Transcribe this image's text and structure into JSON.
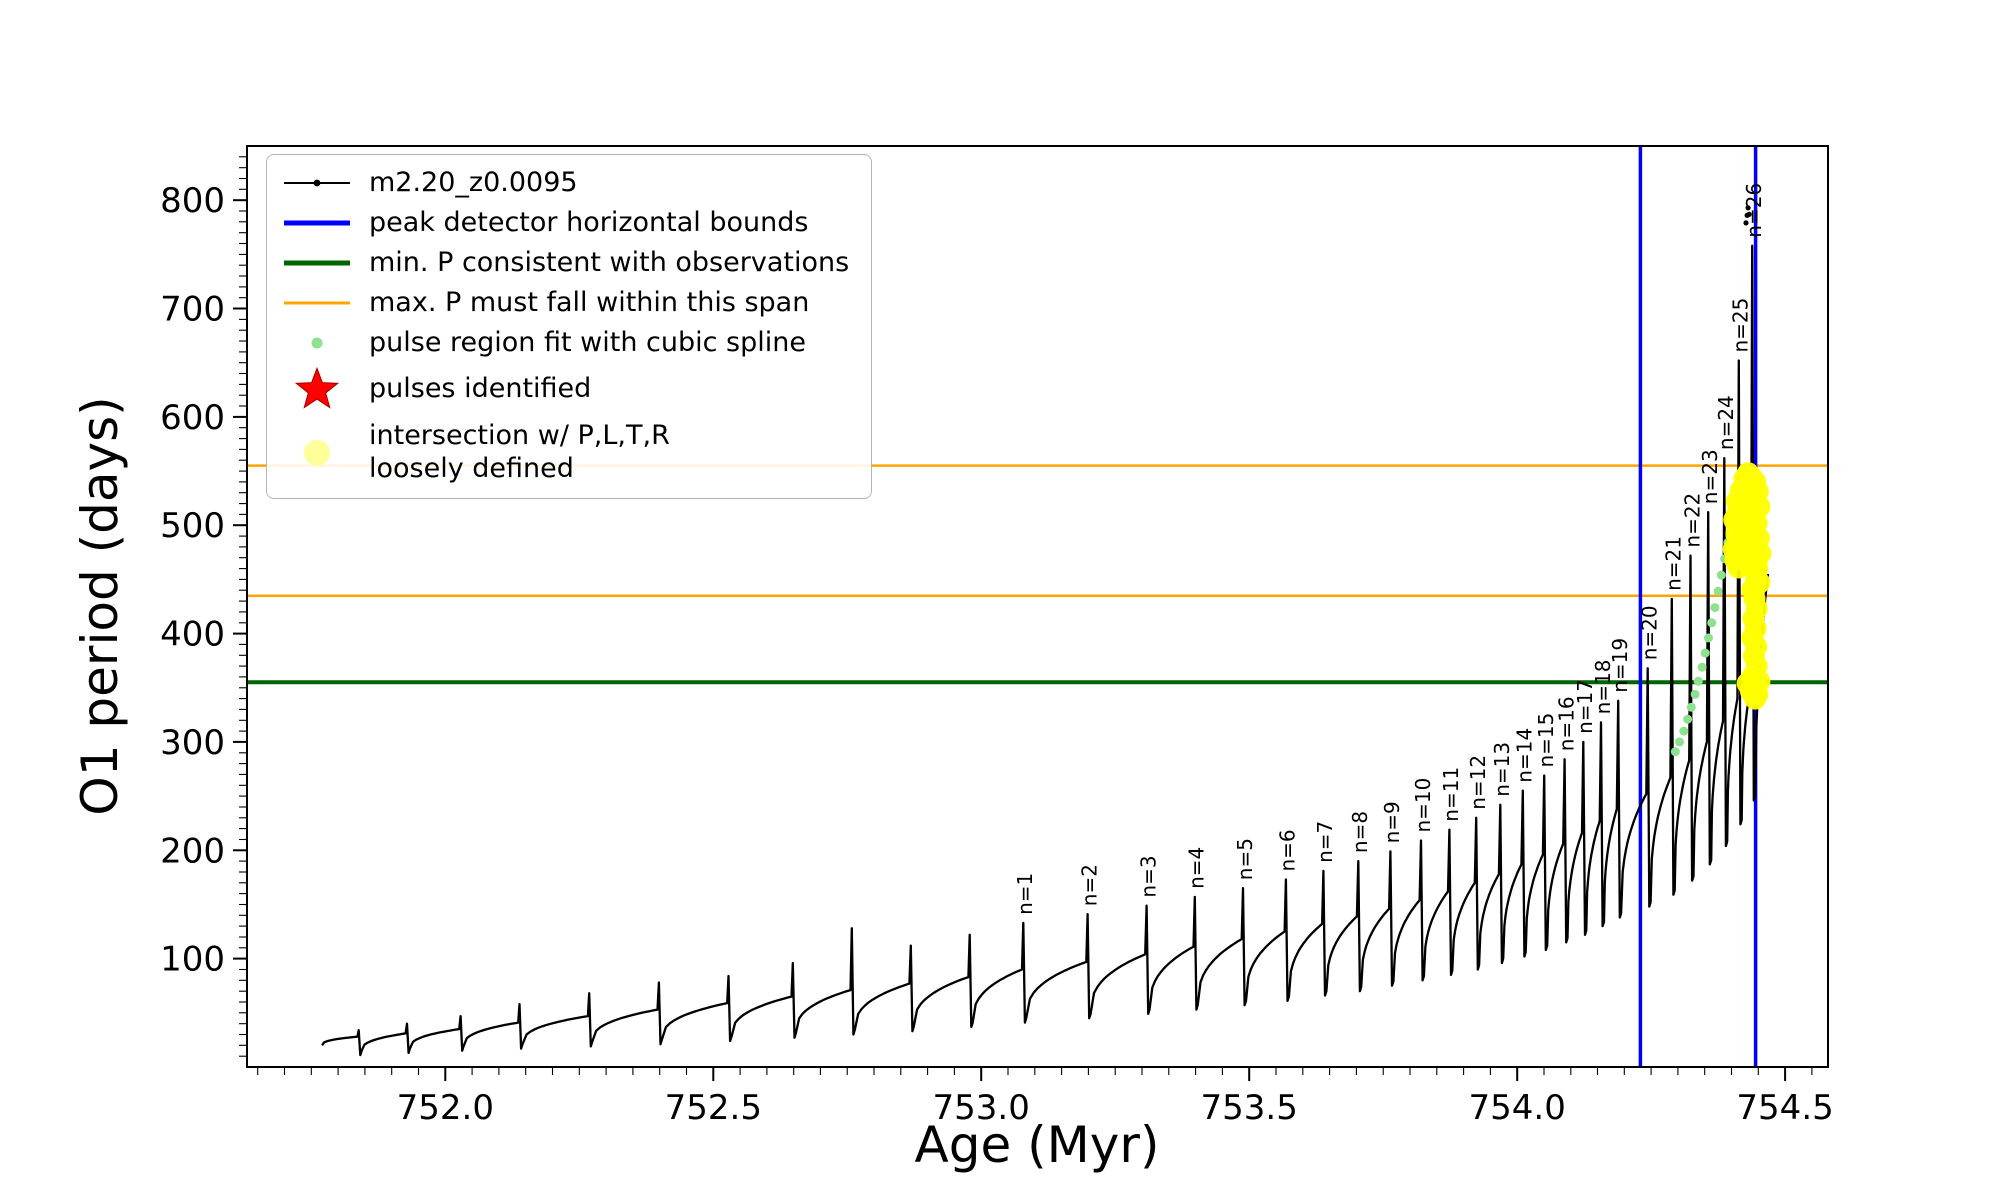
{
  "chart_data": {
    "type": "line",
    "title": "",
    "xlabel": "Age (Myr)",
    "ylabel": "O1 period (days)",
    "xlim": [
      751.63,
      754.58
    ],
    "ylim": [
      0,
      850
    ],
    "xticks": [
      752.0,
      752.5,
      753.0,
      753.5,
      754.0,
      754.5
    ],
    "x_minor_step": 0.05,
    "yticks": [
      100,
      200,
      300,
      400,
      500,
      600,
      700,
      800
    ],
    "y_minor_step": 10,
    "grid": false,
    "legend_position": "upper left",
    "series": {
      "name": "m2.20_z0.0095",
      "color": "#000000",
      "start": {
        "age": 751.77,
        "period": 20
      },
      "end": {
        "age": 754.468,
        "period": 455
      },
      "pulses": [
        {
          "t": 751.84,
          "hump": 28,
          "spike": 34,
          "dip": 15
        },
        {
          "t": 751.93,
          "hump": 31,
          "spike": 40,
          "dip": 17
        },
        {
          "t": 752.03,
          "hump": 35,
          "spike": 47,
          "dip": 19
        },
        {
          "t": 752.14,
          "hump": 41,
          "spike": 58,
          "dip": 21
        },
        {
          "t": 752.27,
          "hump": 47,
          "spike": 68,
          "dip": 23
        },
        {
          "t": 752.4,
          "hump": 53,
          "spike": 78,
          "dip": 25
        },
        {
          "t": 752.53,
          "hump": 59,
          "spike": 84,
          "dip": 28
        },
        {
          "t": 752.65,
          "hump": 65,
          "spike": 96,
          "dip": 31
        },
        {
          "t": 752.76,
          "hump": 71,
          "spike": 128,
          "dip": 34
        },
        {
          "t": 752.87,
          "hump": 77,
          "spike": 112,
          "dip": 37
        },
        {
          "t": 752.98,
          "hump": 83,
          "spike": 122,
          "dip": 41
        },
        {
          "t": 753.08,
          "hump": 90,
          "spike": 133,
          "dip": 45,
          "label": "n=1"
        },
        {
          "t": 753.2,
          "hump": 97,
          "spike": 141,
          "dip": 49,
          "label": "n=2"
        },
        {
          "t": 753.31,
          "hump": 104,
          "spike": 149,
          "dip": 53,
          "label": "n=3"
        },
        {
          "t": 753.4,
          "hump": 111,
          "spike": 157,
          "dip": 57,
          "label": "n=4"
        },
        {
          "t": 753.49,
          "hump": 118,
          "spike": 165,
          "dip": 61,
          "label": "n=5"
        },
        {
          "t": 753.57,
          "hump": 125,
          "spike": 173,
          "dip": 65,
          "label": "n=6"
        },
        {
          "t": 753.64,
          "hump": 132,
          "spike": 181,
          "dip": 70,
          "label": "n=7"
        },
        {
          "t": 753.705,
          "hump": 139,
          "spike": 190,
          "dip": 74,
          "label": "n=8"
        },
        {
          "t": 753.765,
          "hump": 146,
          "spike": 199,
          "dip": 79,
          "label": "n=9"
        },
        {
          "t": 753.822,
          "hump": 154,
          "spike": 209,
          "dip": 84,
          "label": "n=10"
        },
        {
          "t": 753.875,
          "hump": 162,
          "spike": 219,
          "dip": 89,
          "label": "n=11"
        },
        {
          "t": 753.925,
          "hump": 170,
          "spike": 230,
          "dip": 94,
          "label": "n=12"
        },
        {
          "t": 753.97,
          "hump": 178,
          "spike": 242,
          "dip": 100,
          "label": "n=13"
        },
        {
          "t": 754.012,
          "hump": 187,
          "spike": 255,
          "dip": 106,
          "label": "n=14"
        },
        {
          "t": 754.052,
          "hump": 196,
          "spike": 269,
          "dip": 112,
          "label": "n=15"
        },
        {
          "t": 754.09,
          "hump": 206,
          "spike": 284,
          "dip": 119,
          "label": "n=16"
        },
        {
          "t": 754.125,
          "hump": 216,
          "spike": 300,
          "dip": 126,
          "label": "n=17"
        },
        {
          "t": 754.158,
          "hump": 227,
          "spike": 318,
          "dip": 134,
          "label": "n=18"
        },
        {
          "t": 754.19,
          "hump": 238,
          "spike": 338,
          "dip": 142,
          "label": "n=19"
        },
        {
          "t": 754.245,
          "hump": 252,
          "spike": 368,
          "dip": 152,
          "label": "n=20"
        },
        {
          "t": 754.29,
          "hump": 267,
          "spike": 432,
          "dip": 163,
          "label": "n=21"
        },
        {
          "t": 754.325,
          "hump": 283,
          "spike": 472,
          "dip": 176,
          "label": "n=22"
        },
        {
          "t": 754.358,
          "hump": 300,
          "spike": 512,
          "dip": 191,
          "label": "n=23"
        },
        {
          "t": 754.388,
          "hump": 319,
          "spike": 562,
          "dip": 208,
          "label": "n=24"
        },
        {
          "t": 754.415,
          "hump": 340,
          "spike": 652,
          "dip": 228,
          "label": "n=25"
        },
        {
          "t": 754.44,
          "hump": 352,
          "spike": 758,
          "dip": 250,
          "label": "n=26"
        }
      ],
      "top_dots": [
        [
          754.427,
          779
        ],
        [
          754.429,
          786
        ],
        [
          754.431,
          793
        ],
        [
          754.433,
          787
        ]
      ]
    },
    "vlines": {
      "label": "peak detector horizontal bounds",
      "color": "#0000ff",
      "x": [
        754.23,
        754.445
      ]
    },
    "hline_min": {
      "label": "min. P consistent with observations",
      "color": "#006400",
      "y": 355
    },
    "hlines_max": {
      "label": "max. P must fall within this span",
      "color": "#ffa500",
      "y": [
        435,
        555
      ]
    },
    "spline_fit": {
      "label": "pulse region fit with cubic spline",
      "color": "#8fe08f",
      "points": [
        [
          754.295,
          291
        ],
        [
          754.303,
          300
        ],
        [
          754.311,
          310
        ],
        [
          754.318,
          321
        ],
        [
          754.325,
          332
        ],
        [
          754.332,
          344
        ],
        [
          754.338,
          356
        ],
        [
          754.345,
          369
        ],
        [
          754.351,
          382
        ],
        [
          754.357,
          396
        ],
        [
          754.363,
          410
        ],
        [
          754.369,
          424
        ],
        [
          754.375,
          439
        ],
        [
          754.381,
          454
        ],
        [
          754.387,
          469
        ],
        [
          754.393,
          484
        ],
        [
          754.399,
          499
        ],
        [
          754.405,
          513
        ],
        [
          754.411,
          526
        ],
        [
          754.417,
          538
        ]
      ]
    },
    "pulses_identified": {
      "label": "pulses identified",
      "color": "#ff0000"
    },
    "intersection": {
      "label": "intersection w/ P,L,T,R loosely defined",
      "color": "#ffff00",
      "points": [
        [
          754.445,
          352
        ],
        [
          754.44,
          361
        ],
        [
          754.447,
          370
        ],
        [
          754.442,
          379
        ],
        [
          754.446,
          388
        ],
        [
          754.439,
          396
        ],
        [
          754.445,
          405
        ],
        [
          754.441,
          414
        ],
        [
          754.447,
          423
        ],
        [
          754.443,
          432
        ],
        [
          754.439,
          441
        ],
        [
          754.446,
          450
        ],
        [
          754.442,
          459
        ],
        [
          754.447,
          467
        ],
        [
          754.404,
          478
        ],
        [
          754.409,
          492
        ],
        [
          754.405,
          505
        ],
        [
          754.412,
          512
        ],
        [
          754.418,
          498
        ],
        [
          754.415,
          485
        ],
        [
          754.421,
          519
        ],
        [
          754.426,
          505
        ],
        [
          754.423,
          531
        ],
        [
          754.43,
          522
        ],
        [
          754.433,
          537
        ],
        [
          754.428,
          489
        ],
        [
          754.436,
          510
        ],
        [
          754.438,
          528
        ],
        [
          754.444,
          540
        ],
        [
          754.449,
          531
        ],
        [
          754.452,
          517
        ],
        [
          754.447,
          502
        ],
        [
          754.451,
          488
        ],
        [
          754.454,
          474
        ],
        [
          754.42,
          472
        ],
        [
          754.427,
          468
        ],
        [
          754.434,
          480
        ],
        [
          754.441,
          493
        ],
        [
          754.448,
          460
        ],
        [
          754.452,
          447
        ],
        [
          754.41,
          522
        ],
        [
          754.417,
          532
        ],
        [
          754.424,
          543
        ],
        [
          754.431,
          548
        ],
        [
          754.438,
          544
        ],
        [
          754.407,
          468
        ],
        [
          754.413,
          461
        ],
        [
          754.436,
          465
        ],
        [
          754.443,
          472
        ],
        [
          754.43,
          354
        ],
        [
          754.436,
          347
        ],
        [
          754.448,
          344
        ],
        [
          754.452,
          356
        ],
        [
          754.444,
          340
        ]
      ]
    },
    "legend": [
      {
        "marker": "line-dot",
        "color": "#000000",
        "lw": 2,
        "label": "m2.20_z0.0095",
        "icon": "series-line-icon"
      },
      {
        "marker": "line",
        "color": "#0000ff",
        "lw": 5,
        "label": "peak detector horizontal bounds",
        "icon": "blue-line-icon"
      },
      {
        "marker": "line",
        "color": "#006400",
        "lw": 5,
        "label": "min. P consistent with observations",
        "icon": "dark-green-line-icon"
      },
      {
        "marker": "line",
        "color": "#ffa500",
        "lw": 3,
        "label": "max. P must fall within this span",
        "icon": "orange-line-icon"
      },
      {
        "marker": "dot-small",
        "color": "#8fe08f",
        "label": "pulse region fit with cubic spline",
        "icon": "green-dot-icon"
      },
      {
        "marker": "star",
        "color": "#ff0000",
        "label": "pulses identified",
        "icon": "red-star-icon"
      },
      {
        "marker": "dot-large",
        "color": "#ffff99",
        "label": "intersection w/ P,L,T,R",
        "label2": "loosely defined",
        "icon": "yellow-dot-icon"
      }
    ]
  }
}
